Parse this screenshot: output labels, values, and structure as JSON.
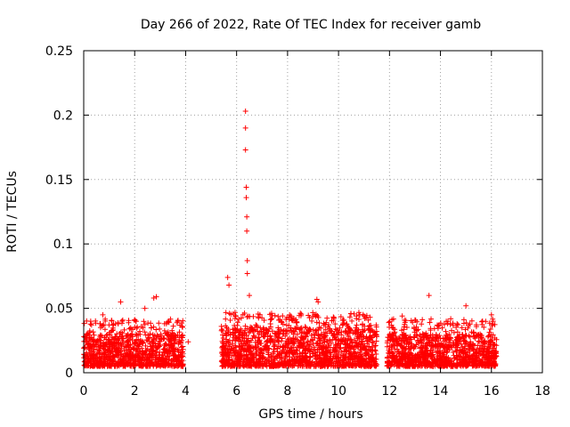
{
  "chart_data": {
    "type": "scatter",
    "title": "Day 266 of 2022, Rate Of TEC Index for receiver gamb",
    "xlabel": "GPS time / hours",
    "ylabel": "ROTI / TECUs",
    "xlim": [
      0,
      18
    ],
    "ylim": [
      0,
      0.25
    ],
    "grid": true,
    "marker": "+",
    "color": "#ff0000",
    "x_ticks": [
      0,
      2,
      4,
      6,
      8,
      10,
      12,
      14,
      16,
      18
    ],
    "x_tick_labels": [
      "0",
      "2",
      "4",
      "6",
      "8",
      "10",
      "12",
      "14",
      "16",
      "18"
    ],
    "y_ticks": [
      0,
      0.05,
      0.1,
      0.15,
      0.2,
      0.25
    ],
    "y_tick_labels": [
      "0",
      "0.05",
      "0.1",
      "0.15",
      "0.2",
      "0.25"
    ],
    "data_segments": [
      {
        "x_start": 0.0,
        "x_end": 3.9,
        "base": [
          0.005,
          0.03
        ]
      },
      {
        "x_start": 5.4,
        "x_end": 11.5,
        "base": [
          0.005,
          0.035
        ]
      },
      {
        "x_start": 11.9,
        "x_end": 16.2,
        "base": [
          0.005,
          0.03
        ]
      }
    ],
    "notable_points": [
      {
        "x": 6.35,
        "y": 0.203
      },
      {
        "x": 6.35,
        "y": 0.19
      },
      {
        "x": 6.35,
        "y": 0.173
      },
      {
        "x": 6.38,
        "y": 0.144
      },
      {
        "x": 6.38,
        "y": 0.136
      },
      {
        "x": 6.4,
        "y": 0.121
      },
      {
        "x": 6.4,
        "y": 0.11
      },
      {
        "x": 6.42,
        "y": 0.087
      },
      {
        "x": 6.42,
        "y": 0.077
      },
      {
        "x": 5.65,
        "y": 0.074
      },
      {
        "x": 5.7,
        "y": 0.068
      },
      {
        "x": 6.5,
        "y": 0.06
      },
      {
        "x": 2.85,
        "y": 0.059
      },
      {
        "x": 2.75,
        "y": 0.058
      },
      {
        "x": 13.55,
        "y": 0.06
      },
      {
        "x": 9.15,
        "y": 0.057
      },
      {
        "x": 9.2,
        "y": 0.055
      },
      {
        "x": 1.45,
        "y": 0.055
      },
      {
        "x": 15.0,
        "y": 0.052
      },
      {
        "x": 2.4,
        "y": 0.05
      },
      {
        "x": 16.0,
        "y": 0.045
      },
      {
        "x": 0.75,
        "y": 0.045
      },
      {
        "x": 12.5,
        "y": 0.044
      },
      {
        "x": 10.7,
        "y": 0.042
      },
      {
        "x": 4.1,
        "y": 0.024
      }
    ]
  }
}
